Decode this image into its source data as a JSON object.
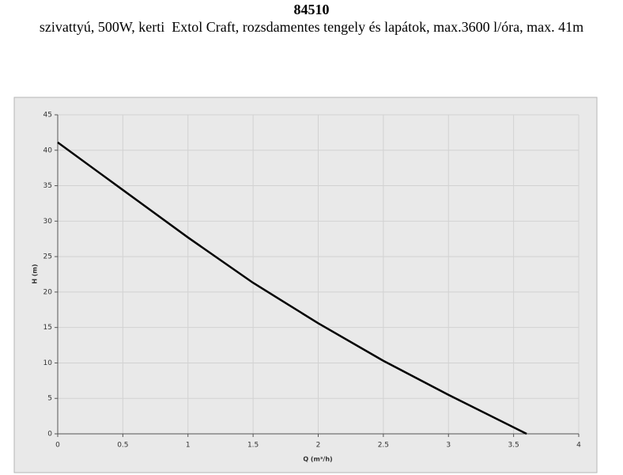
{
  "chart_data": {
    "type": "line",
    "title": "84510",
    "subtitle": "szivattyú, 500W, kerti  Extol Craft, rozsdamentes tengely és lapátok, max.3600 l/óra, max. 41m",
    "x_label": "Q (m³/h)",
    "y_label": "H (m)",
    "x": [
      0,
      0.5,
      1,
      1.5,
      2,
      2.5,
      3,
      3.6
    ],
    "series": [
      {
        "name": "H",
        "color": "#000000",
        "values": [
          41.1,
          34.4,
          27.7,
          21.3,
          15.6,
          10.3,
          5.5,
          0
        ]
      }
    ],
    "xlim": [
      0,
      4
    ],
    "ylim": [
      0,
      45
    ],
    "xticks": [
      0,
      0.5,
      1,
      1.5,
      2,
      2.5,
      3,
      3.5,
      4
    ],
    "yticks": [
      0,
      5,
      10,
      15,
      20,
      25,
      30,
      35,
      40,
      45
    ],
    "grid": true
  }
}
